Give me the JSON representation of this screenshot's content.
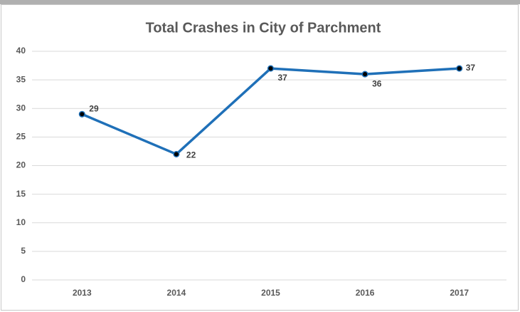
{
  "chart_data": {
    "type": "line",
    "title": "Total Crashes in City of Parchment",
    "categories": [
      "2013",
      "2014",
      "2015",
      "2016",
      "2017"
    ],
    "values": [
      29,
      22,
      37,
      36,
      37
    ],
    "color": "#1f70b8",
    "ylim": [
      0,
      40
    ],
    "yticks": [
      0,
      5,
      10,
      15,
      20,
      25,
      30,
      35,
      40
    ],
    "grid": true
  }
}
